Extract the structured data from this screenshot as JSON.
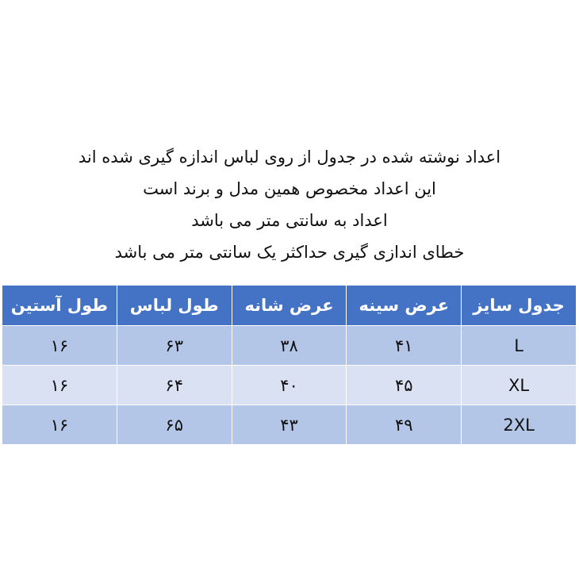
{
  "notes": [
    "اعداد نوشته شده در جدول از روی لباس اندازه گیری شده اند",
    "این اعداد مخصوص همین مدل و برند است",
    "اعداد به سانتی متر می باشد",
    "خطای اندازی گیری حداکثر یک سانتی متر می باشد"
  ],
  "table": {
    "headers": [
      "جدول سایز",
      "عرض سینه",
      "عرض شانه",
      "طول لباس",
      "طول آستین"
    ],
    "rows": [
      [
        "L",
        "۴۱",
        "۳۸",
        "۶۳",
        "۱۶"
      ],
      [
        "XL",
        "۴۵",
        "۴۰",
        "۶۴",
        "۱۶"
      ],
      [
        "2XL",
        "۴۹",
        "۴۳",
        "۶۵",
        "۱۶"
      ]
    ]
  },
  "colors": {
    "header": "#4472C4",
    "row_dark": "#B4C6E7",
    "row_light": "#D9E1F2"
  }
}
